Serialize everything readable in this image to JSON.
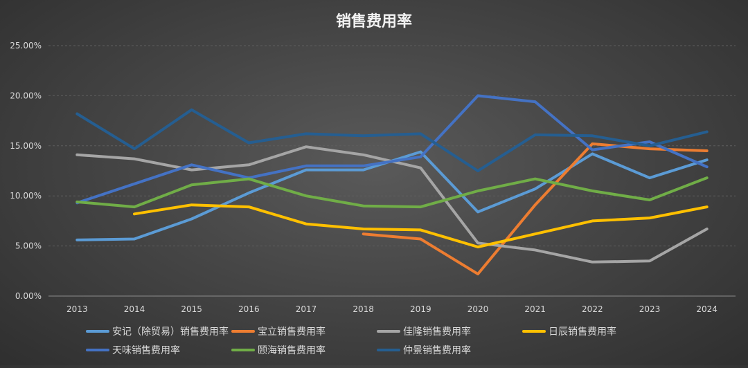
{
  "chart_data": {
    "type": "line",
    "title": "销售费用率",
    "xlabel": "",
    "ylabel": "",
    "categories": [
      "2013",
      "2014",
      "2015",
      "2016",
      "2017",
      "2018",
      "2019",
      "2020",
      "2021",
      "2022",
      "2023",
      "2024"
    ],
    "ylim": [
      0,
      0.25
    ],
    "yticks": [
      0,
      0.05,
      0.1,
      0.15,
      0.2,
      0.25
    ],
    "ytick_labels": [
      "0.00%",
      "5.00%",
      "10.00%",
      "15.00%",
      "20.00%",
      "25.00%"
    ],
    "grid": true,
    "legend_position": "bottom",
    "series": [
      {
        "name": "安记（除贸易）销售费用率",
        "color": "#5b9bd5",
        "values": [
          0.056,
          0.057,
          0.077,
          0.103,
          0.126,
          0.126,
          0.144,
          0.084,
          0.107,
          0.142,
          0.118,
          0.136
        ]
      },
      {
        "name": "宝立销售费用率",
        "color": "#ed7d31",
        "values": [
          null,
          null,
          null,
          null,
          null,
          0.062,
          0.057,
          0.022,
          0.091,
          0.152,
          0.147,
          0.145
        ]
      },
      {
        "name": "佳隆销售费用率",
        "color": "#a5a5a5",
        "values": [
          0.141,
          0.137,
          0.126,
          0.131,
          0.149,
          0.141,
          0.128,
          0.053,
          0.046,
          0.034,
          0.035,
          0.067
        ]
      },
      {
        "name": "日辰销售费用率",
        "color": "#ffc000",
        "values": [
          null,
          0.082,
          0.091,
          0.089,
          0.072,
          0.067,
          0.066,
          0.049,
          0.062,
          0.075,
          0.078,
          0.089
        ]
      },
      {
        "name": "天味销售费用率",
        "color": "#4472c4",
        "values": [
          0.093,
          0.112,
          0.131,
          0.118,
          0.13,
          0.13,
          0.139,
          0.2,
          0.194,
          0.146,
          0.154,
          0.129
        ]
      },
      {
        "name": "颐海销售费用率",
        "color": "#70ad47",
        "values": [
          0.094,
          0.089,
          0.111,
          0.117,
          0.1,
          0.09,
          0.089,
          0.105,
          0.117,
          0.105,
          0.096,
          0.118
        ]
      },
      {
        "name": "仲景销售费用率",
        "color": "#255e91",
        "values": [
          0.182,
          0.147,
          0.186,
          0.153,
          0.162,
          0.16,
          0.162,
          0.125,
          0.161,
          0.16,
          0.15,
          0.164
        ]
      }
    ]
  }
}
